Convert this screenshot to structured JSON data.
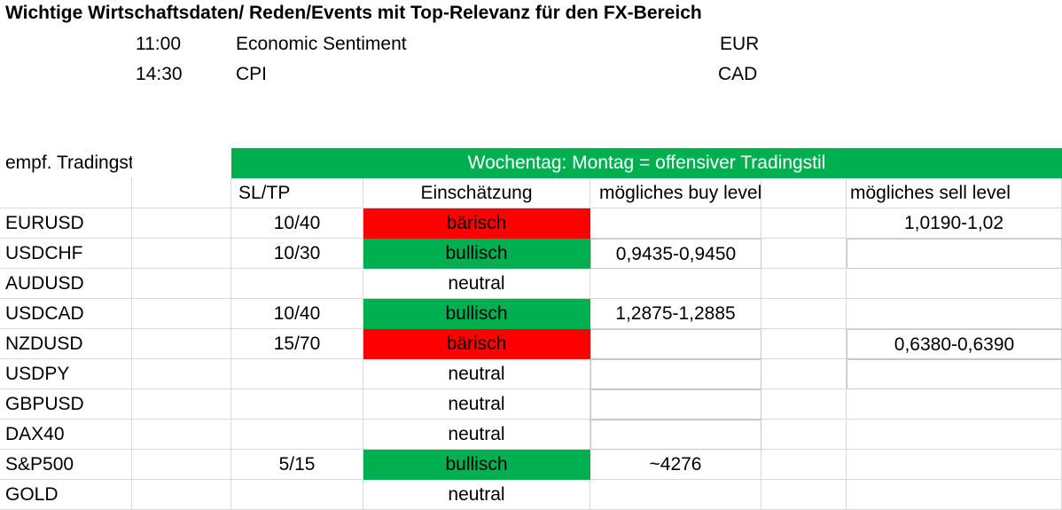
{
  "heading": "Wichtige Wirtschaftsdaten/ Reden/Events mit Top-Relevanz für den FX-Bereich",
  "events": [
    {
      "time": "11:00",
      "name": "Economic Sentiment",
      "currency": "EUR"
    },
    {
      "time": "14:30",
      "name": "CPI",
      "currency": "CAD"
    }
  ],
  "trading_style": {
    "label": "empf. Tradingstil ->",
    "banner": "Wochentag: Montag = offensiver Tradingstil"
  },
  "columns": {
    "sltp": "SL/TP",
    "assessment": "Einschätzung",
    "buy_level": "mögliches buy level",
    "sell_level": "mögliches sell level"
  },
  "colors": {
    "bullish": "#00b050",
    "bearish": "#ff0000",
    "neutral": "#ffffff",
    "banner": "#00b050"
  },
  "rows": [
    {
      "symbol": "EURUSD",
      "sltp": "10/40",
      "assessment": "bärisch",
      "sentiment": "bearish",
      "buy": "",
      "sell": "1,0190-1,02"
    },
    {
      "symbol": "USDCHF",
      "sltp": "10/30",
      "assessment": "bullisch",
      "sentiment": "bullish",
      "buy": "0,9435-0,9450",
      "sell": ""
    },
    {
      "symbol": "AUDUSD",
      "sltp": "",
      "assessment": "neutral",
      "sentiment": "neutral",
      "buy": "",
      "sell": ""
    },
    {
      "symbol": "USDCAD",
      "sltp": "10/40",
      "assessment": "bullisch",
      "sentiment": "bullish",
      "buy": "1,2875-1,2885",
      "sell": ""
    },
    {
      "symbol": "NZDUSD",
      "sltp": "15/70",
      "assessment": "bärisch",
      "sentiment": "bearish",
      "buy": "",
      "sell": "0,6380-0,6390"
    },
    {
      "symbol": "USDPY",
      "sltp": "",
      "assessment": "neutral",
      "sentiment": "neutral",
      "buy": "",
      "sell": ""
    },
    {
      "symbol": "GBPUSD",
      "sltp": "",
      "assessment": "neutral",
      "sentiment": "neutral",
      "buy": "",
      "sell": ""
    },
    {
      "symbol": "DAX40",
      "sltp": "",
      "assessment": "neutral",
      "sentiment": "neutral",
      "buy": "",
      "sell": ""
    },
    {
      "symbol": "S&P500",
      "sltp": "5/15",
      "assessment": "bullisch",
      "sentiment": "bullish",
      "buy": "~4276",
      "sell": ""
    },
    {
      "symbol": "GOLD",
      "sltp": "",
      "assessment": "neutral",
      "sentiment": "neutral",
      "buy": "",
      "sell": ""
    }
  ]
}
